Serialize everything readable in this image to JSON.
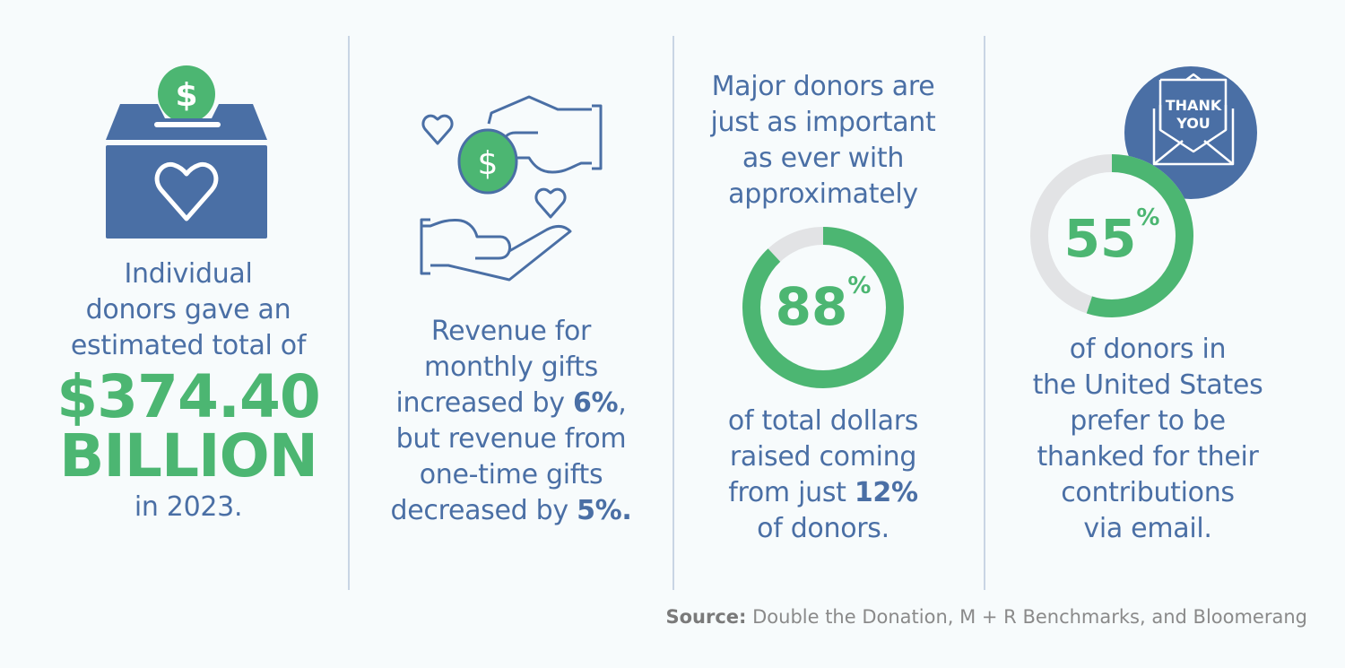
{
  "colors": {
    "accent_blue": "#4a6fa5",
    "accent_green": "#4cb672",
    "ring_gray": "#e2e3e5",
    "background": "#f7fbfc"
  },
  "col1": {
    "icon": "donation-box-heart-icon",
    "lines": [
      "Individual",
      "donors gave an",
      "estimated total of"
    ],
    "amount": "$374.40",
    "unit": "BILLION",
    "tail": "in 2023."
  },
  "col2": {
    "icon": "hands-giving-coin-icon",
    "l1": "Revenue for",
    "l2": "monthly gifts",
    "l3a": "increased by ",
    "l3b": "6%",
    "l3c": ",",
    "l4": "but revenue from",
    "l5": "one-time gifts",
    "l6a": "decreased by ",
    "l6b": "5%."
  },
  "col3": {
    "top": [
      "Major donors are",
      "just as important",
      "as ever with",
      "approximately"
    ],
    "percent_value": 88,
    "percent_number": "88",
    "percent_sign": "%",
    "b1": "of total dollars",
    "b2": "raised coming",
    "b3a": "from just ",
    "b3b": "12%",
    "b4": "of donors."
  },
  "col4": {
    "icon": "thank-you-envelope-icon",
    "icon_text": [
      "THANK",
      "YOU"
    ],
    "percent_value": 55,
    "percent_number": "55",
    "percent_sign": "%",
    "lines": [
      "of donors in",
      "the United States",
      "prefer to be",
      "thanked for their",
      "contributions",
      "via email."
    ]
  },
  "source": {
    "label": "Source:",
    "text": " Double the Donation, M + R Benchmarks, and Bloomerang"
  }
}
